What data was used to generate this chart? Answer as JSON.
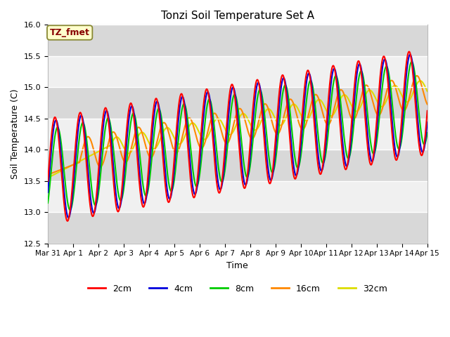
{
  "title": "Tonzi Soil Temperature Set A",
  "xlabel": "Time",
  "ylabel": "Soil Temperature (C)",
  "ylim": [
    12.5,
    16.0
  ],
  "xlim": [
    0,
    15
  ],
  "xtick_labels": [
    "Mar 31",
    "Apr 1",
    "Apr 2",
    "Apr 3",
    "Apr 4",
    "Apr 5",
    "Apr 6",
    "Apr 7",
    "Apr 8",
    "Apr 9",
    "Apr 10",
    "Apr 11",
    "Apr 12",
    "Apr 13",
    "Apr 14",
    "Apr 15"
  ],
  "colors": {
    "2cm": "#ff0000",
    "4cm": "#0000dd",
    "8cm": "#00cc00",
    "16cm": "#ff8800",
    "32cm": "#dddd00"
  },
  "annotation_text": "TZ_fmet",
  "annotation_color": "#880000",
  "annotation_bg": "#ffffcc",
  "bg_color": "#e8e8e8",
  "bg_band_color": "#d8d8d8",
  "bg_white": "#f0f0f0"
}
